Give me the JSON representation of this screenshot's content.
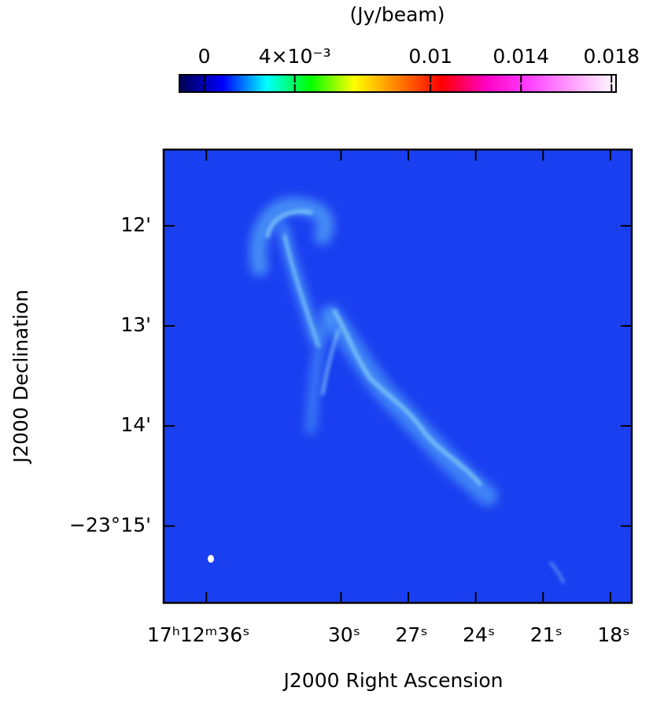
{
  "chart_data": {
    "type": "image",
    "colorbar": {
      "label": "(Jy/beam)",
      "lim": [
        -0.0011,
        0.0182
      ],
      "ticks": [
        0,
        {
          "value": 0.004,
          "label": "4×10⁻³"
        },
        0.01,
        0.014,
        0.018
      ],
      "colormap": [
        "#000050",
        "#0000ff",
        "#00ffff",
        "#00ff00",
        "#ffff00",
        "#ff8000",
        "#ff0000",
        "#ff00c0",
        "#ff40ff",
        "#ffa0ff",
        "#ffffff"
      ]
    },
    "xlabel": "J2000 Right Ascension",
    "ylabel": "J2000 Declination",
    "xlim": [
      37.9,
      17.05
    ],
    "xticks": [
      {
        "value": 36,
        "label": "17ʰ12ᵐ36ˢ"
      },
      {
        "value": 30,
        "label": "30ˢ"
      },
      {
        "value": 27,
        "label": "27ˢ"
      },
      {
        "value": 24,
        "label": "24ˢ"
      },
      {
        "value": 21,
        "label": "21ˢ"
      },
      {
        "value": 18,
        "label": "18ˢ"
      }
    ],
    "ylim": [
      -23.1873,
      -23.2628
    ],
    "yticks": [
      {
        "value": -23.2,
        "label": "12'"
      },
      {
        "value": -23.21667,
        "label": "13'"
      },
      {
        "value": -23.23333,
        "label": "14'"
      },
      {
        "value": -23.25,
        "label": "−23°15'"
      }
    ]
  }
}
